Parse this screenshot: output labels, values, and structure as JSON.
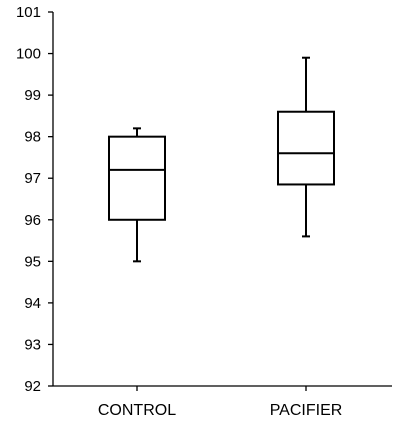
{
  "chart_data": {
    "type": "box",
    "title": "",
    "xlabel": "",
    "ylabel": "",
    "ylim": [
      92,
      101
    ],
    "yticks": [
      "92",
      "93",
      "94",
      "95",
      "96",
      "97",
      "98",
      "99",
      "100",
      "101"
    ],
    "categories": [
      "CONTROL",
      "PACIFIER"
    ],
    "boxes": [
      {
        "category": "CONTROL",
        "min": 95.0,
        "q1": 96.0,
        "median": 97.2,
        "q3": 98.0,
        "max": 98.2
      },
      {
        "category": "PACIFIER",
        "min": 95.6,
        "q1": 96.85,
        "median": 97.6,
        "q3": 98.6,
        "max": 99.9
      }
    ],
    "grid": false,
    "legend": "none",
    "colors": {
      "stroke": "#000000",
      "box_fill": "#ffffff",
      "axis": "#000000"
    }
  }
}
